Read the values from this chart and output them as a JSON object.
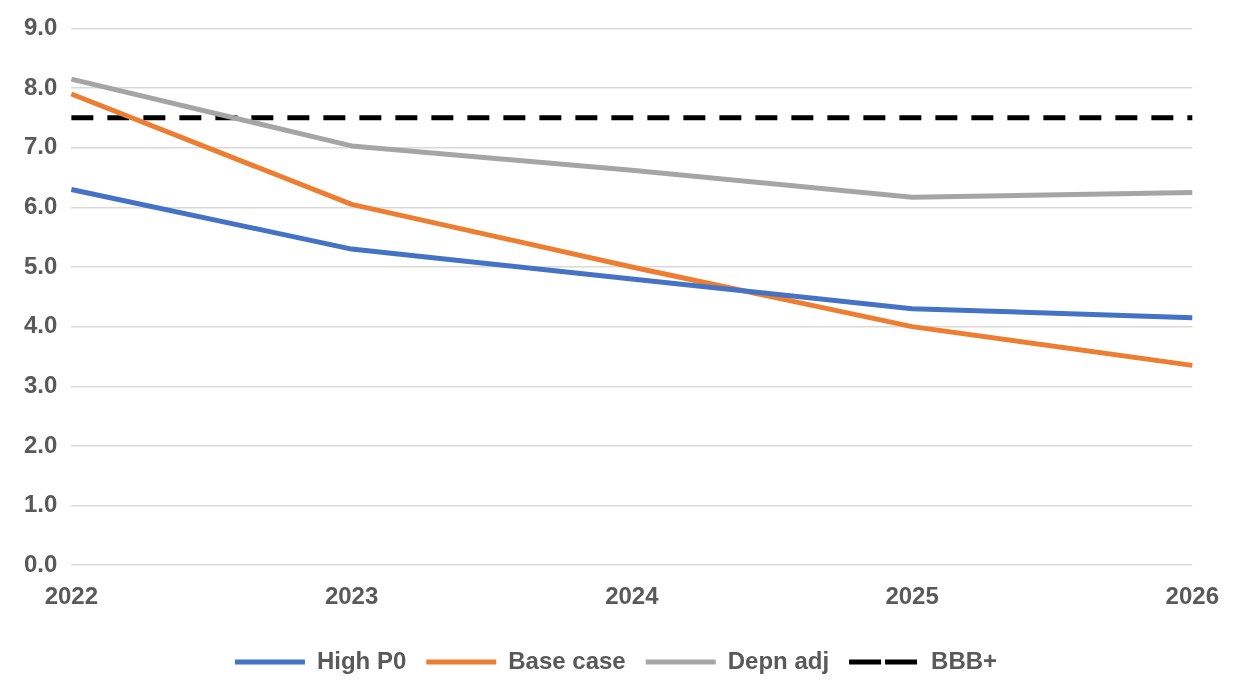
{
  "chart_data": {
    "type": "line",
    "categories": [
      "2022",
      "2023",
      "2024",
      "2025",
      "2026"
    ],
    "series": [
      {
        "name": "High P0",
        "color": "#4472c4",
        "values": [
          6.3,
          5.3,
          4.8,
          4.3,
          4.15
        ]
      },
      {
        "name": "Base case",
        "color": "#ed7d31",
        "values": [
          7.9,
          6.05,
          5.0,
          4.0,
          3.35
        ]
      },
      {
        "name": "Depn adj",
        "color": "#a5a5a5",
        "values": [
          8.15,
          7.03,
          6.62,
          6.17,
          6.25
        ]
      },
      {
        "name": "BBB+",
        "color": "#000000",
        "line_style": "dashed",
        "values": [
          7.5,
          7.5,
          7.5,
          7.5,
          7.5
        ]
      }
    ],
    "ylim": [
      0,
      9
    ],
    "yticks": [
      {
        "value": 0,
        "label": "0.0"
      },
      {
        "value": 1,
        "label": "1.0"
      },
      {
        "value": 2,
        "label": "2.0"
      },
      {
        "value": 3,
        "label": "3.0"
      },
      {
        "value": 4,
        "label": "4.0"
      },
      {
        "value": 5,
        "label": "5.0"
      },
      {
        "value": 6,
        "label": "6.0"
      },
      {
        "value": 7,
        "label": "7.0"
      },
      {
        "value": 8,
        "label": "8.0"
      },
      {
        "value": 9,
        "label": "9.0"
      }
    ],
    "grid": "y",
    "legend": "bottom",
    "marker": "none"
  }
}
